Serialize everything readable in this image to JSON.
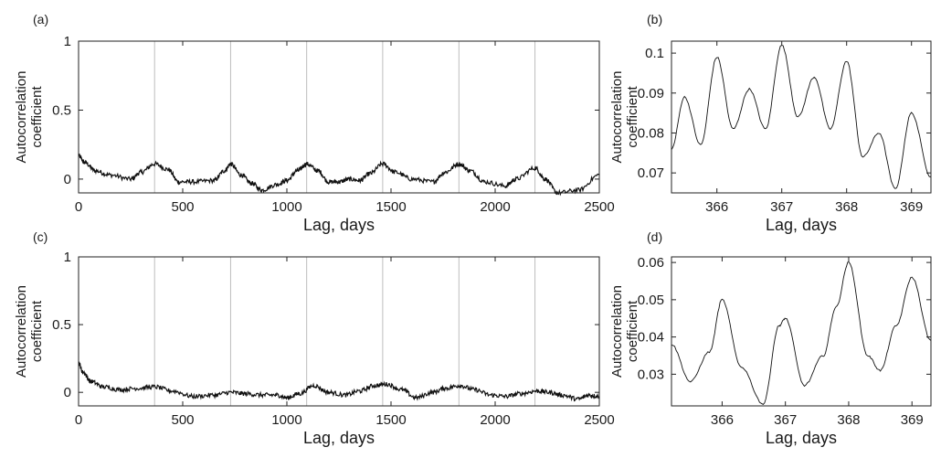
{
  "chart_data": [
    {
      "panel": "(a)",
      "type": "line",
      "xlabel": "Lag, days",
      "ylabel": [
        "Autocorrelation",
        "coefficient"
      ],
      "xlim": [
        0,
        2500
      ],
      "ylim": [
        -0.1,
        1
      ],
      "xticks": [
        0,
        500,
        1000,
        1500,
        2000,
        2500
      ],
      "yticks": [
        0,
        0.5,
        1
      ],
      "yticklabels": [
        "0",
        "0.5",
        "1"
      ],
      "vlines": [
        365,
        730,
        1095,
        1460,
        1826,
        2191
      ],
      "grid": false,
      "series": [
        {
          "x": [
            0,
            30,
            80,
            150,
            250,
            300,
            365,
            430,
            480,
            550,
            650,
            700,
            730,
            780,
            830,
            880,
            950,
            1000,
            1050,
            1095,
            1150,
            1200,
            1250,
            1300,
            1350,
            1400,
            1460,
            1520,
            1600,
            1700,
            1760,
            1826,
            1880,
            1950,
            2050,
            2100,
            2191,
            2240,
            2300,
            2400,
            2500
          ],
          "y": [
            0.17,
            0.12,
            0.06,
            0.03,
            0.0,
            0.05,
            0.11,
            0.07,
            -0.02,
            -0.02,
            -0.01,
            0.06,
            0.11,
            0.03,
            -0.03,
            -0.08,
            -0.04,
            -0.01,
            0.06,
            0.11,
            0.06,
            -0.02,
            -0.02,
            0.0,
            -0.01,
            0.04,
            0.11,
            0.05,
            0.0,
            -0.02,
            0.05,
            0.11,
            0.06,
            -0.02,
            -0.05,
            0.0,
            0.08,
            0.0,
            -0.1,
            -0.08,
            0.03
          ]
        }
      ]
    },
    {
      "panel": "(b)",
      "type": "line",
      "xlabel": "Lag, days",
      "ylabel": [
        "Autocorrelation",
        "coefficient"
      ],
      "xlim": [
        365.3,
        369.3
      ],
      "ylim": [
        0.065,
        0.103
      ],
      "xticks": [
        366,
        367,
        368,
        369
      ],
      "yticks": [
        0.07,
        0.08,
        0.09,
        0.1
      ],
      "yticklabels": [
        "0.07",
        "0.08",
        "0.09",
        "0.1"
      ],
      "series": [
        {
          "x": [
            365.3,
            365.5,
            365.75,
            366.0,
            366.25,
            366.5,
            366.75,
            367.0,
            367.25,
            367.5,
            367.75,
            368.0,
            368.25,
            368.5,
            368.75,
            369.0,
            369.3
          ],
          "y": [
            0.076,
            0.089,
            0.077,
            0.099,
            0.081,
            0.091,
            0.081,
            0.102,
            0.084,
            0.094,
            0.081,
            0.098,
            0.074,
            0.08,
            0.066,
            0.085,
            0.069
          ]
        }
      ]
    },
    {
      "panel": "(c)",
      "type": "line",
      "xlabel": "Lag, days",
      "ylabel": [
        "Autocorrelation",
        "coefficient"
      ],
      "xlim": [
        0,
        2500
      ],
      "ylim": [
        -0.1,
        1
      ],
      "xticks": [
        0,
        500,
        1000,
        1500,
        2000,
        2500
      ],
      "yticks": [
        0,
        0.5,
        1
      ],
      "yticklabels": [
        "0",
        "0.5",
        "1"
      ],
      "vlines": [
        365,
        730,
        1095,
        1460,
        1826,
        2191
      ],
      "grid": false,
      "series": [
        {
          "x": [
            0,
            20,
            60,
            120,
            200,
            280,
            365,
            450,
            550,
            650,
            730,
            800,
            880,
            950,
            1000,
            1060,
            1130,
            1200,
            1280,
            1350,
            1420,
            1480,
            1550,
            1620,
            1700,
            1760,
            1830,
            1900,
            1980,
            2050,
            2120,
            2200,
            2260,
            2320,
            2400,
            2450,
            2500
          ],
          "y": [
            0.22,
            0.15,
            0.08,
            0.04,
            0.02,
            0.03,
            0.04,
            0.01,
            -0.03,
            -0.02,
            0.0,
            -0.01,
            -0.02,
            -0.02,
            -0.04,
            -0.01,
            0.05,
            0.0,
            -0.02,
            0.01,
            0.05,
            0.06,
            0.02,
            -0.04,
            0.0,
            0.03,
            0.05,
            0.02,
            -0.02,
            -0.03,
            -0.01,
            0.01,
            0.0,
            -0.02,
            -0.05,
            -0.02,
            -0.03
          ]
        }
      ]
    },
    {
      "panel": "(d)",
      "type": "line",
      "xlabel": "Lag, days",
      "ylabel": [
        "Autocorrelation",
        "coefficient"
      ],
      "xlim": [
        365.2,
        369.3
      ],
      "ylim": [
        0.0215,
        0.0615
      ],
      "xticks": [
        366,
        367,
        368,
        369
      ],
      "yticks": [
        0.03,
        0.04,
        0.05,
        0.06
      ],
      "yticklabels": [
        "0.03",
        "0.04",
        "0.05",
        "0.06"
      ],
      "series": [
        {
          "x": [
            365.2,
            365.5,
            365.8,
            366.0,
            366.3,
            366.65,
            366.9,
            367.0,
            367.3,
            367.6,
            367.8,
            368.0,
            368.3,
            368.5,
            368.75,
            369.0,
            369.3
          ],
          "y": [
            0.038,
            0.028,
            0.036,
            0.05,
            0.032,
            0.022,
            0.043,
            0.045,
            0.027,
            0.035,
            0.048,
            0.06,
            0.035,
            0.031,
            0.043,
            0.056,
            0.039
          ]
        }
      ]
    }
  ]
}
